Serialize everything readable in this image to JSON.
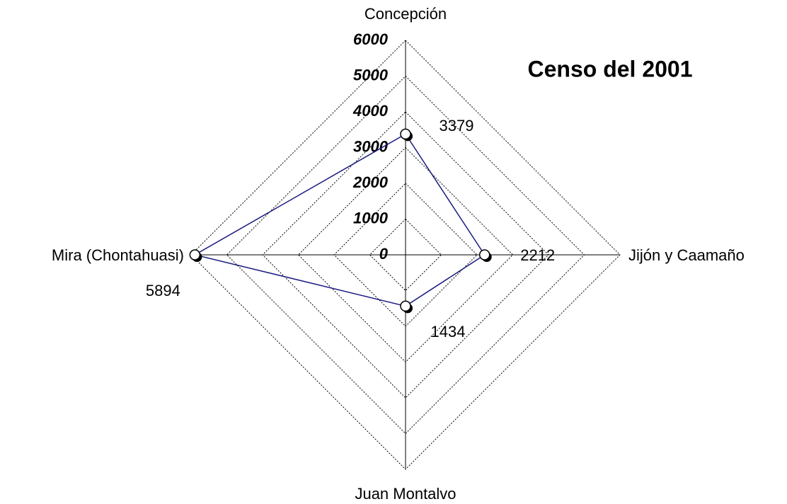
{
  "chart_data": {
    "type": "radar",
    "title": "Censo del 2001",
    "categories": [
      "Concepción",
      "Jijón y Caamaño",
      "Juan Montalvo",
      "Mira (Chontahuasi)"
    ],
    "values": [
      3379,
      2212,
      1434,
      5894
    ],
    "color": "#1a1a80",
    "rlim": [
      0,
      6000
    ],
    "rticks": [
      0,
      1000,
      2000,
      3000,
      4000,
      5000,
      6000
    ],
    "grid": true
  }
}
